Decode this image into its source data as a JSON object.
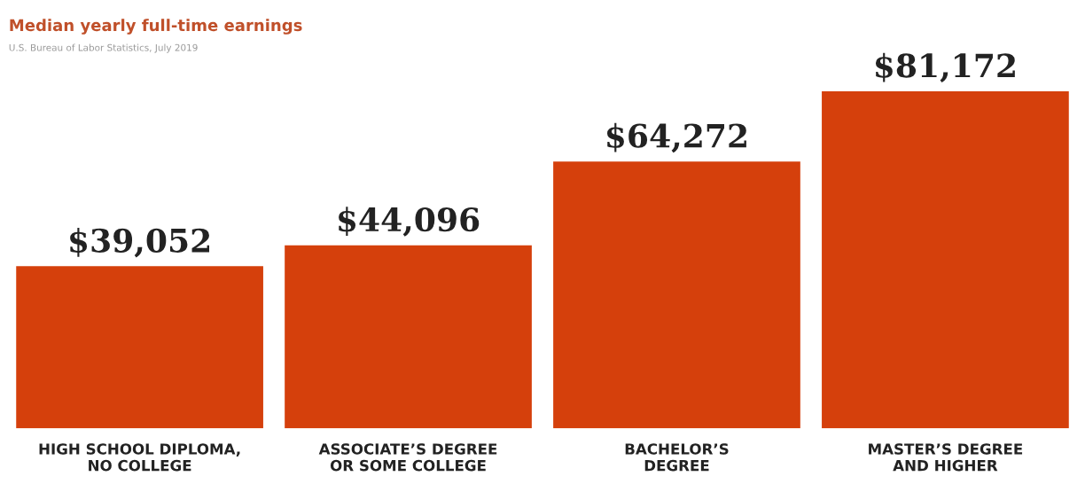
{
  "chart_data": {
    "type": "bar",
    "title": "Median yearly full-time earnings",
    "annotations": [
      "U.S. Bureau of Labor Statistics, July 2019"
    ],
    "categories": [
      "HIGH SCHOOL DIPLOMA,\nNO COLLEGE",
      "ASSOCIATE’S DEGREE\nOR SOME COLLEGE",
      "BACHELOR’S\nDEGREE",
      "MASTER’S DEGREE\nAND HIGHER"
    ],
    "values": [
      39052,
      44096,
      64272,
      81172
    ],
    "value_labels": [
      "$39,052",
      "$44,096",
      "$64,272",
      "$81,172"
    ],
    "color": "#d5400c",
    "grid": false,
    "legend": false
  }
}
